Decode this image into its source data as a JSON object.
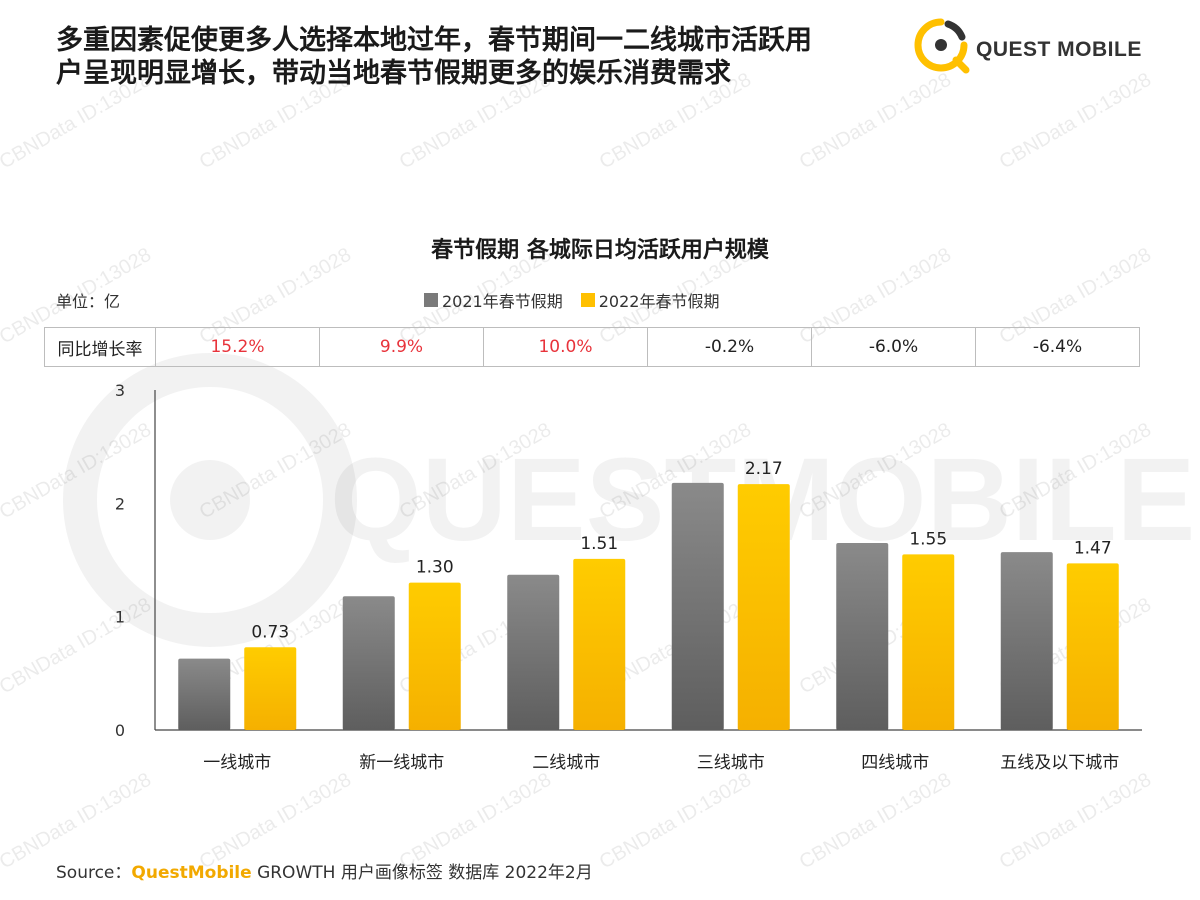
{
  "headline": {
    "line1": "多重因素促使更多人选择本地过年，春节期间一二线城市活跃用",
    "line2": "户呈现明显增长，带动当地春节假期更多的娱乐消费需求"
  },
  "logo": {
    "text": "QUEST MOBILE"
  },
  "watermark": {
    "text": "CBNData ID:13028",
    "background_text": "QUESTMOBILE"
  },
  "chart_data": {
    "type": "bar",
    "title": "春节假期 各城际日均活跃用户规模",
    "unit_label": "单位：亿",
    "categories": [
      "一线城市",
      "新一线城市",
      "二线城市",
      "三线城市",
      "四线城市",
      "五线及以下城市"
    ],
    "series": [
      {
        "name": "2021年春节假期",
        "color": "#7a7a7a",
        "values": [
          0.63,
          1.18,
          1.37,
          2.18,
          1.65,
          1.57
        ]
      },
      {
        "name": "2022年春节假期",
        "color": "#ffc000",
        "values": [
          0.73,
          1.3,
          1.51,
          2.17,
          1.55,
          1.47
        ]
      }
    ],
    "data_labels": [
      "0.73",
      "1.30",
      "1.51",
      "2.17",
      "1.55",
      "1.47"
    ],
    "y_ticks": [
      "0",
      "1",
      "2",
      "3"
    ],
    "ylim": [
      0,
      3
    ],
    "legend_position": "top",
    "yoy": {
      "header": "同比增长率",
      "values": [
        "15.2%",
        "9.9%",
        "10.0%",
        "-0.2%",
        "-6.0%",
        "-6.4%"
      ],
      "positive_color": "#e8333b",
      "negative_color": "#222222"
    }
  },
  "source": {
    "prefix": "Source：",
    "brand": "QuestMobile",
    "rest": " GROWTH 用户画像标签 数据库 2022年2月"
  }
}
